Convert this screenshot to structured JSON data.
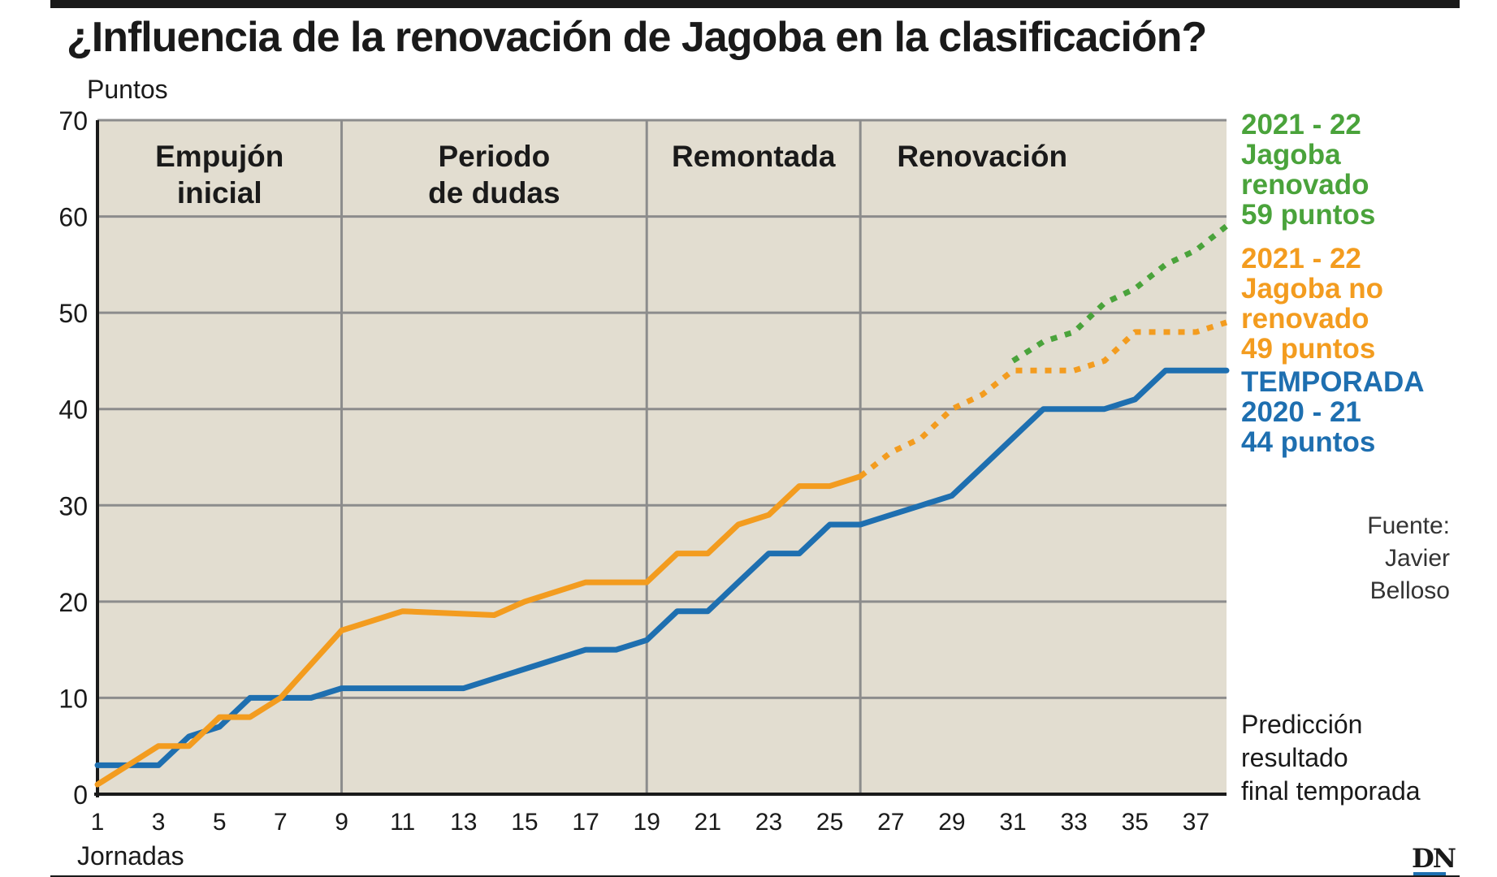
{
  "title": "¿Influencia de la renovación de Jagoba en la clasificación?",
  "source": [
    "Fuente:",
    "Javier",
    "Belloso"
  ],
  "logo": "DN",
  "chart_data": {
    "type": "line",
    "ylabel": "Puntos",
    "xlabel": "Jornadas",
    "ylim": [
      0,
      70
    ],
    "xlim": [
      1,
      38
    ],
    "yticks": [
      0,
      10,
      20,
      30,
      40,
      50,
      60,
      70
    ],
    "xticks": [
      1,
      3,
      5,
      7,
      9,
      11,
      13,
      15,
      17,
      19,
      21,
      23,
      25,
      27,
      29,
      31,
      33,
      35,
      37
    ],
    "grid": true,
    "phases": [
      {
        "label": [
          "Empujón",
          "inicial"
        ],
        "start": 1,
        "end": 9
      },
      {
        "label": [
          "Periodo",
          "de dudas"
        ],
        "start": 9,
        "end": 19
      },
      {
        "label": [
          "Remontada"
        ],
        "start": 19,
        "end": 26
      },
      {
        "label": [
          "Renovación"
        ],
        "start": 26,
        "end": 38
      }
    ],
    "series": [
      {
        "name": "TEMPORADA 2020 - 21 44 puntos",
        "legend": [
          "TEMPORADA",
          "2020 - 21",
          "44 puntos"
        ],
        "color": "#1e6fb0",
        "style": "solid",
        "x": [
          1,
          3,
          4,
          5,
          6,
          7,
          8,
          9,
          10,
          11,
          12,
          13,
          14,
          15,
          16,
          17,
          18,
          19,
          20,
          21,
          22,
          23,
          24,
          25,
          26,
          27,
          28,
          29,
          30,
          31,
          32,
          33,
          34,
          35,
          36,
          37,
          38
        ],
        "y": [
          3,
          3,
          6,
          7,
          10,
          10,
          10,
          11,
          11,
          11,
          11,
          11,
          12,
          13,
          14,
          15,
          15,
          16,
          19,
          19,
          22,
          25,
          25,
          28,
          28,
          29,
          30,
          31,
          34,
          37,
          40,
          40,
          40,
          41,
          44,
          44,
          44
        ]
      },
      {
        "name": "2021 - 22 Jagoba no renovado 49 puntos",
        "legend": [
          "2021 - 22",
          "Jagoba no",
          "renovado",
          "49 puntos"
        ],
        "color": "#f39c1f",
        "style": "solid",
        "x": [
          1,
          2,
          3,
          4,
          5,
          6,
          7,
          9,
          11,
          14,
          15,
          17,
          19,
          20,
          21,
          22,
          23,
          24,
          25,
          26
        ],
        "y": [
          1,
          3,
          5,
          5,
          8,
          8,
          10,
          17,
          19,
          18.6,
          20,
          22,
          22,
          25,
          25,
          28,
          29,
          32,
          32,
          33
        ]
      },
      {
        "name": "2021 - 22 Jagoba no renovado (predicción)",
        "color": "#f39c1f",
        "style": "dotted",
        "x": [
          26,
          27,
          28,
          29,
          30,
          31,
          32,
          33,
          34,
          35,
          36,
          37,
          38
        ],
        "y": [
          33,
          35.5,
          37,
          40,
          41.5,
          44,
          44,
          44,
          45,
          48,
          48,
          48,
          49
        ]
      },
      {
        "name": "2021 - 22 Jagoba renovado 59 puntos",
        "legend": [
          "2021 - 22",
          "Jagoba",
          "renovado",
          "59 puntos"
        ],
        "color": "#4aa33b",
        "style": "dotted",
        "x": [
          31,
          32,
          33,
          34,
          35,
          36,
          37,
          38
        ],
        "y": [
          45,
          47,
          48,
          51,
          52.5,
          55,
          56.5,
          59
        ]
      }
    ],
    "annotation": [
      "Predicción",
      "resultado",
      "final temporada"
    ]
  }
}
